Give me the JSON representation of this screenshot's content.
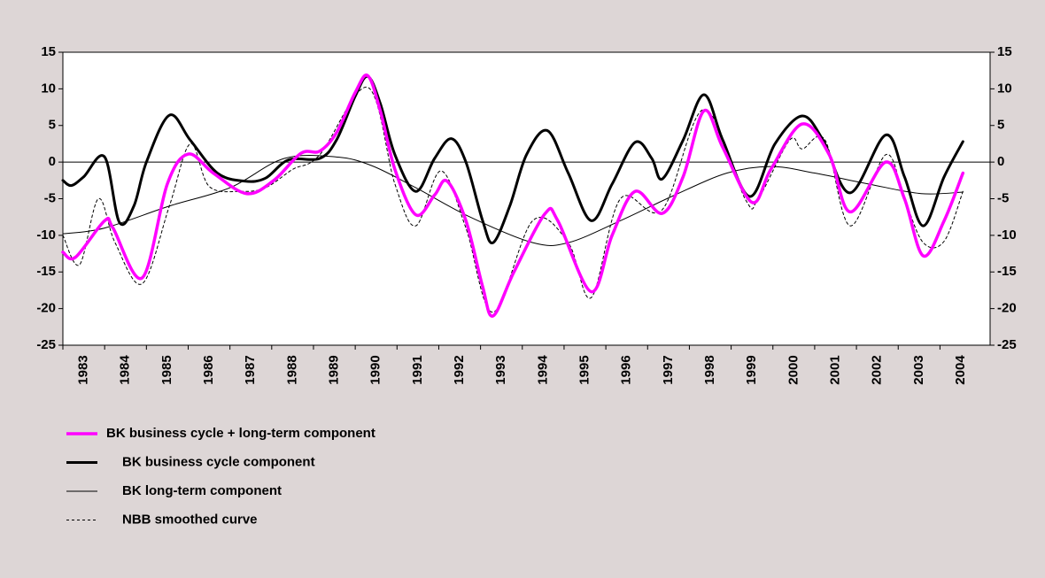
{
  "chart_data": {
    "type": "line",
    "xlim": [
      1983,
      2005.2
    ],
    "xticks": [
      1983,
      1984,
      1985,
      1986,
      1987,
      1988,
      1989,
      1990,
      1991,
      1992,
      1993,
      1994,
      1995,
      1996,
      1997,
      1998,
      1999,
      2000,
      2001,
      2002,
      2003,
      2004
    ],
    "ylim": [
      -25,
      15
    ],
    "yticks": [
      -25,
      -20,
      -15,
      -10,
      -5,
      0,
      5,
      10,
      15
    ],
    "y2lim": [
      -25,
      15
    ],
    "y2ticks": [
      -25,
      -20,
      -15,
      -10,
      -5,
      0,
      5,
      10,
      15
    ],
    "zero_line": true,
    "series": [
      {
        "name": "BK business cycle + long-term component",
        "color": "#ff00ff",
        "width": 3.5,
        "dash": false,
        "x": [
          1983.0,
          1983.3,
          1984.0,
          1984.2,
          1984.9,
          1985.5,
          1986.0,
          1986.6,
          1987.4,
          1988.05,
          1988.7,
          1989.15,
          1989.55,
          1990.0,
          1990.3,
          1990.6,
          1990.95,
          1991.45,
          1991.9,
          1992.2,
          1992.65,
          1993.05,
          1993.3,
          1993.8,
          1994.55,
          1994.85,
          1995.65,
          1996.15,
          1996.7,
          1997.35,
          1997.85,
          1998.35,
          1998.8,
          1999.5,
          1999.95,
          2000.7,
          2001.35,
          2001.85,
          2002.7,
          2003.15,
          2003.6,
          2004.1,
          2004.55
        ],
        "values": [
          -12.3,
          -13,
          -8,
          -9,
          -15.8,
          -3,
          1.1,
          -1.5,
          -4.3,
          -2.5,
          1.2,
          1.5,
          4,
          9.5,
          11.8,
          7,
          -1,
          -7.2,
          -4.5,
          -2.6,
          -8,
          -17,
          -21,
          -15,
          -7,
          -8,
          -17.7,
          -10,
          -4,
          -7,
          -2,
          7,
          2,
          -5.5,
          -1,
          5.2,
          1,
          -6.8,
          0,
          -5,
          -12.8,
          -8,
          -1.5
        ]
      },
      {
        "name": "BK business cycle component",
        "color": "#000000",
        "width": 3,
        "dash": false,
        "x": [
          1983.0,
          1983.2,
          1983.5,
          1984.0,
          1984.35,
          1984.7,
          1985.0,
          1985.55,
          1986.05,
          1986.7,
          1987.35,
          1987.85,
          1988.4,
          1989.15,
          1989.55,
          1990.0,
          1990.3,
          1990.6,
          1990.95,
          1991.45,
          1991.9,
          1992.3,
          1992.65,
          1993.05,
          1993.3,
          1993.7,
          1994.1,
          1994.6,
          1995.1,
          1995.65,
          1996.15,
          1996.7,
          1997.1,
          1997.35,
          1997.85,
          1998.35,
          1998.8,
          1999.45,
          2000.05,
          2000.7,
          2001.2,
          2001.85,
          2002.7,
          2003.15,
          2003.6,
          2004.1,
          2004.55
        ],
        "values": [
          -2.5,
          -3.2,
          -2,
          0.7,
          -8.2,
          -6,
          0,
          6.4,
          3,
          -1.5,
          -2.6,
          -2.2,
          0.3,
          0.5,
          3,
          9,
          11.7,
          8,
          1,
          -4,
          0.5,
          3.2,
          0,
          -8,
          -11,
          -6,
          1,
          4.3,
          -1.5,
          -8,
          -3,
          2.7,
          0.5,
          -2.3,
          3,
          9.2,
          3,
          -4.7,
          2.5,
          6.3,
          3,
          -4.2,
          3.7,
          -2,
          -8.7,
          -2,
          2.8
        ]
      },
      {
        "name": "BK long-term component",
        "color": "#000000",
        "width": 1,
        "dash": false,
        "x": [
          1983.0,
          1984.0,
          1985.55,
          1987.0,
          1988.3,
          1989.55,
          1990.4,
          1991.45,
          1992.75,
          1994.25,
          1995.1,
          1996.35,
          1997.65,
          1998.9,
          1999.95,
          2001.0,
          2002.3,
          2003.55,
          2004.55
        ],
        "values": [
          -9.8,
          -9,
          -6,
          -3.5,
          0.5,
          0.7,
          -0.5,
          -3.5,
          -7.5,
          -11,
          -11,
          -8,
          -4.5,
          -1.5,
          -0.6,
          -1.5,
          -3,
          -4.3,
          -4.1
        ]
      },
      {
        "name": "NBB smoothed curve",
        "color": "#000000",
        "width": 1,
        "dash": true,
        "x": [
          1983.0,
          1983.4,
          1983.85,
          1984.25,
          1984.9,
          1985.55,
          1986.05,
          1986.5,
          1987.25,
          1987.85,
          1988.5,
          1989.15,
          1990.3,
          1990.95,
          1991.45,
          1992.05,
          1992.65,
          1993.3,
          1994.25,
          1995.1,
          1995.65,
          1996.35,
          1997.35,
          1998.35,
          1999.35,
          1999.65,
          2000.4,
          2000.7,
          2001.25,
          2001.85,
          2002.7,
          2003.15,
          2003.6,
          2004.1,
          2004.55
        ],
        "values": [
          -10,
          -14,
          -5,
          -11,
          -16.6,
          -6,
          2.5,
          -3.3,
          -4,
          -3.5,
          -1,
          1,
          10.2,
          -3,
          -8.7,
          -1.2,
          -9,
          -20.5,
          -8,
          -11,
          -18.5,
          -5,
          -6.5,
          7.2,
          -5.2,
          -5,
          3,
          1.8,
          3,
          -8.7,
          1,
          -5,
          -11,
          -10.8,
          -4
        ]
      }
    ]
  }
}
